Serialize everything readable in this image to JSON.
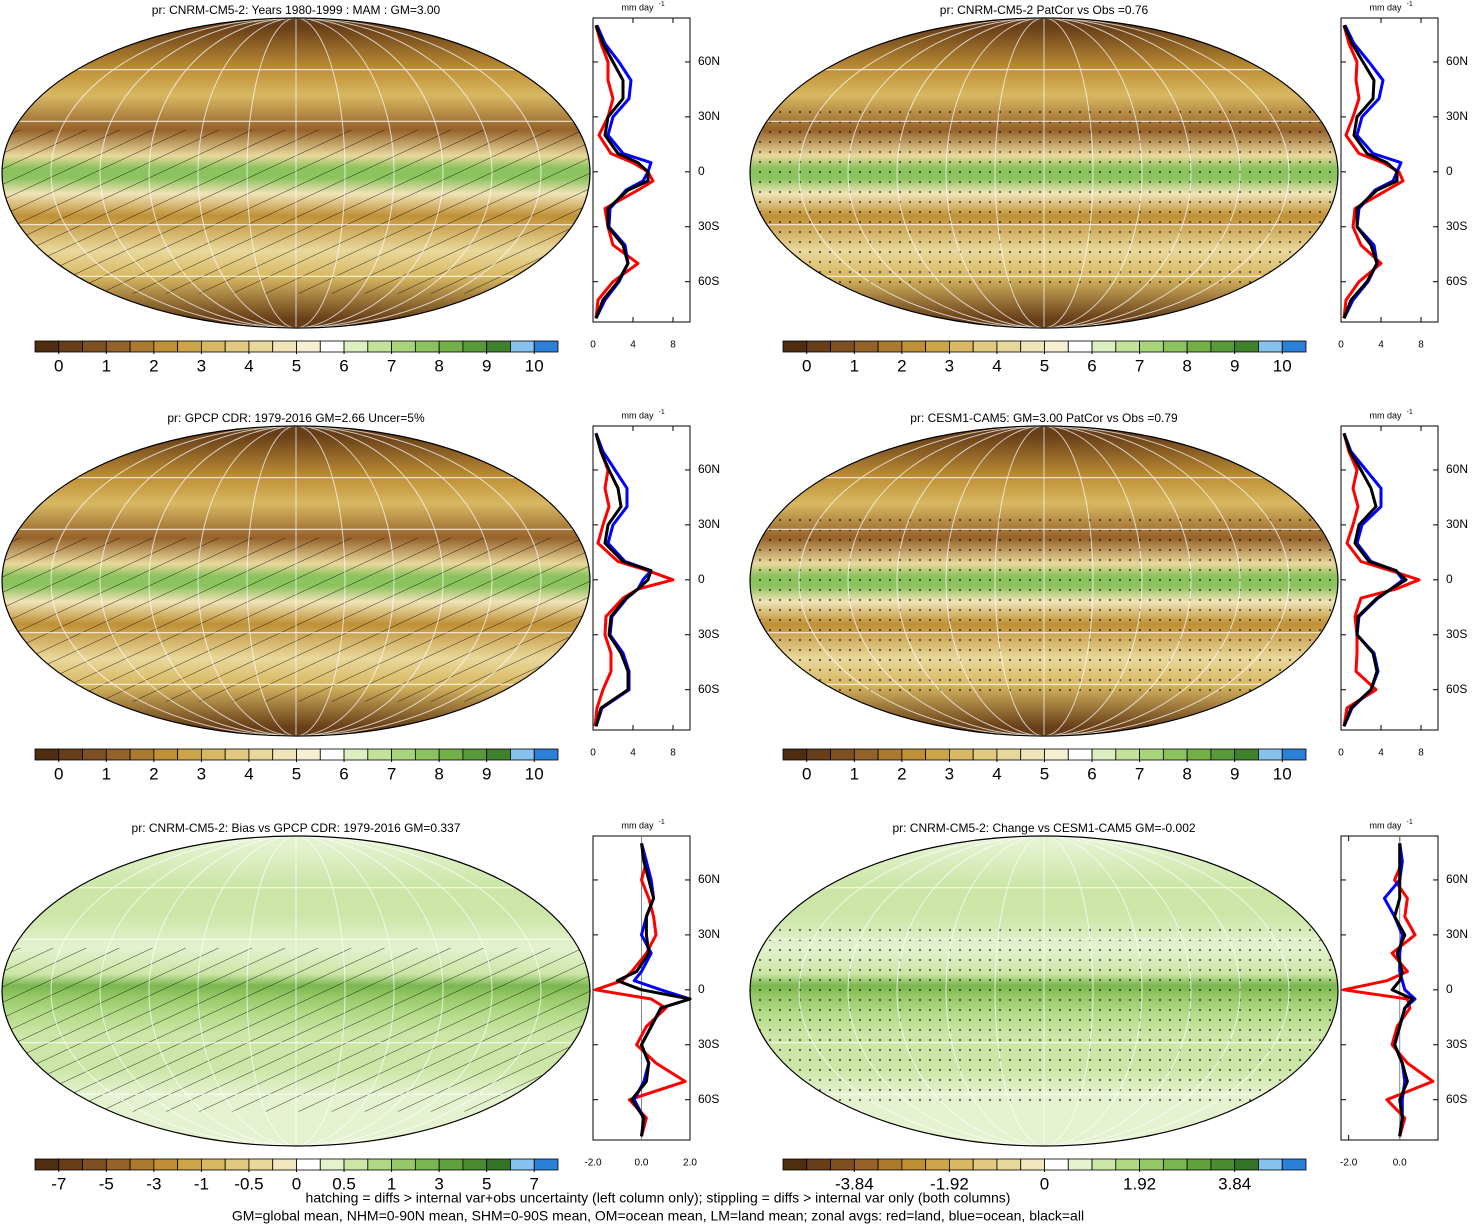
{
  "chart_data": [
    {
      "type": "map",
      "title": "pr: CNRM-CM5-2: Years 1980-1999 : MAM : GM=3.00",
      "hatching": true,
      "stippling": false,
      "colors": [
        "#4e2d10",
        "#673e18",
        "#7e4f21",
        "#95622a",
        "#ab7a2f",
        "#bf9036",
        "#cda548",
        "#d8b862",
        "#e1c97f",
        "#e9d89c",
        "#f0e4b8",
        "#f6efd2",
        "#ffffff",
        "#dcefc0",
        "#c3e399",
        "#a8d47a",
        "#8dc35e",
        "#72b047",
        "#589a38",
        "#3f822c",
        "#86c2ee",
        "#2a7fd6"
      ],
      "colorbar_ticks": [
        0,
        1,
        2,
        3,
        4,
        5,
        6,
        7,
        8,
        9,
        10
      ]
    },
    {
      "type": "line",
      "xlabel": "mm day",
      "xlabel_exponent": "-1",
      "xlim": [
        0,
        9.7
      ],
      "xticks": [
        0,
        4,
        8
      ],
      "ylim": [
        -82,
        84
      ],
      "yticks": [
        {
          "value": 60,
          "label": "60N"
        },
        {
          "value": 30,
          "label": "30N"
        },
        0,
        {
          "value": -30,
          "label": "30S"
        },
        {
          "value": -60,
          "label": "60S"
        }
      ],
      "y": [
        -80,
        -70,
        -60,
        -50,
        -40,
        -30,
        -20,
        -10,
        -5,
        0,
        5,
        10,
        20,
        30,
        40,
        50,
        60,
        70,
        80
      ],
      "series": [
        {
          "color": "#ff0000",
          "values": [
            0.3,
            0.5,
            2.0,
            4.5,
            2.0,
            1.5,
            1.2,
            4.5,
            6.0,
            5.5,
            4.0,
            1.8,
            0.6,
            1.5,
            2.0,
            1.5,
            1.5,
            0.8,
            0.3
          ]
        },
        {
          "color": "#0000ff",
          "values": [
            0.3,
            1.2,
            2.6,
            3.5,
            3.2,
            1.6,
            1.7,
            3.3,
            5.0,
            5.5,
            5.8,
            3.0,
            1.5,
            2.0,
            3.6,
            3.8,
            2.6,
            1.2,
            0.4
          ]
        },
        {
          "color": "#000000",
          "values": [
            0.3,
            1.0,
            2.5,
            3.5,
            3.0,
            1.5,
            1.5,
            3.5,
            5.5,
            5.5,
            4.5,
            2.5,
            1.2,
            1.5,
            3.0,
            3.0,
            2.0,
            1.0,
            0.3
          ]
        }
      ]
    },
    {
      "type": "map",
      "title": "pr: CNRM-CM5-2 PatCor vs Obs =0.76",
      "hatching": false,
      "stippling": true,
      "colors": [
        "#4e2d10",
        "#673e18",
        "#7e4f21",
        "#95622a",
        "#ab7a2f",
        "#bf9036",
        "#cda548",
        "#d8b862",
        "#e1c97f",
        "#e9d89c",
        "#f0e4b8",
        "#f6efd2",
        "#ffffff",
        "#dcefc0",
        "#c3e399",
        "#a8d47a",
        "#8dc35e",
        "#72b047",
        "#589a38",
        "#3f822c",
        "#86c2ee",
        "#2a7fd6"
      ],
      "colorbar_ticks": [
        0,
        1,
        2,
        3,
        4,
        5,
        6,
        7,
        8,
        9,
        10
      ]
    },
    {
      "type": "line",
      "xlabel": "mm day",
      "xlabel_exponent": "-1",
      "xlim": [
        0,
        9.7
      ],
      "xticks": [
        0,
        4,
        8
      ],
      "ylim": [
        -82,
        84
      ],
      "yticks": [
        {
          "value": 60,
          "label": "60N"
        },
        {
          "value": 30,
          "label": "30N"
        },
        0,
        {
          "value": -30,
          "label": "30S"
        },
        {
          "value": -60,
          "label": "60S"
        }
      ],
      "y": [
        -80,
        -70,
        -60,
        -50,
        -40,
        -30,
        -20,
        -10,
        -5,
        0,
        5,
        10,
        20,
        30,
        40,
        50,
        60,
        70,
        80
      ],
      "series": [
        {
          "color": "#ff0000",
          "values": [
            0.3,
            0.5,
            1.8,
            4.0,
            2.0,
            1.2,
            1.4,
            4.6,
            6.2,
            5.8,
            4.2,
            1.8,
            0.5,
            1.2,
            1.8,
            1.5,
            1.6,
            0.8,
            0.3
          ]
        },
        {
          "color": "#0000ff",
          "values": [
            0.3,
            1.2,
            2.7,
            3.6,
            3.3,
            1.6,
            1.8,
            3.4,
            5.2,
            5.6,
            6.0,
            3.2,
            1.6,
            2.1,
            3.8,
            4.2,
            2.8,
            1.3,
            0.4
          ]
        },
        {
          "color": "#000000",
          "values": [
            0.3,
            1.0,
            2.6,
            3.6,
            3.0,
            1.6,
            1.6,
            3.6,
            5.6,
            5.6,
            4.6,
            2.6,
            1.3,
            1.6,
            3.2,
            3.3,
            2.2,
            1.1,
            0.3
          ]
        }
      ]
    },
    {
      "type": "map",
      "title": "pr: GPCP CDR: 1979-2016 GM=2.66 Uncer=5%",
      "hatching": true,
      "stippling": false,
      "colors": [
        "#4e2d10",
        "#673e18",
        "#7e4f21",
        "#95622a",
        "#ab7a2f",
        "#bf9036",
        "#cda548",
        "#d8b862",
        "#e1c97f",
        "#e9d89c",
        "#f0e4b8",
        "#f6efd2",
        "#ffffff",
        "#dcefc0",
        "#c3e399",
        "#a8d47a",
        "#8dc35e",
        "#72b047",
        "#589a38",
        "#3f822c",
        "#86c2ee",
        "#2a7fd6"
      ],
      "colorbar_ticks": [
        0,
        1,
        2,
        3,
        4,
        5,
        6,
        7,
        8,
        9,
        10
      ]
    },
    {
      "type": "line",
      "xlabel": "mm day",
      "xlabel_exponent": "-1",
      "xlim": [
        0,
        9.7
      ],
      "xticks": [
        0,
        4,
        8
      ],
      "ylim": [
        -82,
        84
      ],
      "yticks": [
        {
          "value": 60,
          "label": "60N"
        },
        {
          "value": 30,
          "label": "30N"
        },
        0,
        {
          "value": -30,
          "label": "30S"
        },
        {
          "value": -60,
          "label": "60S"
        }
      ],
      "y": [
        -80,
        -70,
        -60,
        -50,
        -40,
        -30,
        -20,
        -10,
        -5,
        0,
        5,
        10,
        20,
        30,
        40,
        50,
        60,
        70,
        80
      ],
      "series": [
        {
          "color": "#ff0000",
          "values": [
            0.2,
            0.4,
            1.0,
            1.8,
            1.8,
            1.2,
            1.3,
            3.0,
            4.5,
            8.0,
            5.5,
            2.5,
            0.5,
            1.0,
            1.6,
            1.2,
            1.5,
            0.8,
            0.3
          ]
        },
        {
          "color": "#0000ff",
          "values": [
            0.3,
            0.9,
            3.6,
            3.6,
            3.0,
            1.7,
            1.9,
            3.4,
            4.5,
            5.0,
            5.8,
            3.2,
            1.5,
            2.0,
            3.4,
            3.4,
            2.2,
            1.0,
            0.3
          ]
        },
        {
          "color": "#000000",
          "values": [
            0.3,
            0.8,
            3.5,
            3.5,
            2.8,
            1.6,
            1.8,
            3.3,
            4.5,
            5.5,
            5.8,
            3.0,
            1.2,
            1.5,
            2.8,
            2.5,
            1.6,
            0.8,
            0.3
          ]
        }
      ]
    },
    {
      "type": "map",
      "title": "pr: CESM1-CAM5: GM=3.00 PatCor vs Obs =0.79",
      "hatching": false,
      "stippling": true,
      "colors": [
        "#4e2d10",
        "#673e18",
        "#7e4f21",
        "#95622a",
        "#ab7a2f",
        "#bf9036",
        "#cda548",
        "#d8b862",
        "#e1c97f",
        "#e9d89c",
        "#f0e4b8",
        "#f6efd2",
        "#ffffff",
        "#dcefc0",
        "#c3e399",
        "#a8d47a",
        "#8dc35e",
        "#72b047",
        "#589a38",
        "#3f822c",
        "#86c2ee",
        "#2a7fd6"
      ],
      "colorbar_ticks": [
        0,
        1,
        2,
        3,
        4,
        5,
        6,
        7,
        8,
        9,
        10
      ]
    },
    {
      "type": "line",
      "xlabel": "mm day",
      "xlabel_exponent": "-1",
      "xlim": [
        0,
        9.7
      ],
      "xticks": [
        0,
        4,
        8
      ],
      "ylim": [
        -82,
        84
      ],
      "yticks": [
        {
          "value": 60,
          "label": "60N"
        },
        {
          "value": 30,
          "label": "30N"
        },
        0,
        {
          "value": -30,
          "label": "30S"
        },
        {
          "value": -60,
          "label": "60S"
        }
      ],
      "y": [
        -80,
        -70,
        -60,
        -50,
        -40,
        -30,
        -20,
        -10,
        -5,
        0,
        5,
        10,
        20,
        30,
        40,
        50,
        60,
        70,
        80
      ],
      "series": [
        {
          "color": "#ff0000",
          "values": [
            0.3,
            0.6,
            3.5,
            1.5,
            1.6,
            1.6,
            1.4,
            2.0,
            5.5,
            7.8,
            5.0,
            2.0,
            0.6,
            1.2,
            1.7,
            1.2,
            1.6,
            0.8,
            0.3
          ]
        },
        {
          "color": "#0000ff",
          "values": [
            0.3,
            1.1,
            3.0,
            3.7,
            3.3,
            1.6,
            1.8,
            3.7,
            5.0,
            6.2,
            5.5,
            3.0,
            1.6,
            2.1,
            4.0,
            4.0,
            2.5,
            1.0,
            0.3
          ]
        },
        {
          "color": "#000000",
          "values": [
            0.3,
            1.0,
            3.0,
            3.6,
            3.2,
            1.6,
            1.7,
            3.6,
            5.0,
            6.5,
            5.5,
            2.8,
            1.4,
            1.8,
            3.5,
            3.0,
            2.0,
            0.9,
            0.3
          ]
        }
      ]
    },
    {
      "type": "map",
      "title": "pr: CNRM-CM5-2: Bias vs GPCP CDR: 1979-2016 GM=0.337",
      "hatching": true,
      "stippling": false,
      "colors": [
        "#4e2d10",
        "#673e18",
        "#7e4f21",
        "#95622a",
        "#ab7a2f",
        "#bf9036",
        "#cda548",
        "#d8b862",
        "#e1c97f",
        "#e9d89c",
        "#f2e6bf",
        "#ffffff",
        "#e4f2cf",
        "#cbe6a6",
        "#b0d985",
        "#95c866",
        "#7ab64f",
        "#61a13d",
        "#4a8a30",
        "#347226",
        "#86c2ee",
        "#2a7fd6"
      ],
      "colorbar_ticks": [
        -7,
        -5,
        -3,
        -1,
        -0.5,
        0,
        0.5,
        1,
        3,
        5,
        7
      ]
    },
    {
      "type": "line",
      "xlabel": "mm day",
      "xlabel_exponent": "-1",
      "xlim": [
        -2,
        2
      ],
      "xticks": [
        {
          "value": -2,
          "label": "-2.0"
        },
        {
          "value": 0,
          "label": "0.0"
        },
        {
          "value": 2,
          "label": "2.0"
        }
      ],
      "ylim": [
        -82,
        84
      ],
      "yticks": [
        {
          "value": 60,
          "label": "60N"
        },
        {
          "value": 30,
          "label": "30N"
        },
        0,
        {
          "value": -30,
          "label": "30S"
        },
        {
          "value": -60,
          "label": "60S"
        }
      ],
      "y": [
        -80,
        -70,
        -60,
        -50,
        -40,
        -30,
        -20,
        -10,
        -5,
        0,
        5,
        10,
        20,
        30,
        40,
        50,
        60,
        70,
        80
      ],
      "series": [
        {
          "color": "#ff0000",
          "values": [
            0.0,
            0.2,
            -0.5,
            1.8,
            0.6,
            -0.2,
            0.2,
            1.0,
            0.4,
            -1.9,
            -0.8,
            -0.4,
            0.2,
            0.6,
            0.5,
            0.3,
            0.0,
            0.2,
            0.0
          ]
        },
        {
          "color": "#0000ff",
          "values": [
            0.0,
            0.1,
            -0.3,
            0.1,
            0.3,
            0.0,
            0.4,
            0.8,
            2.0,
            0.8,
            -0.3,
            0.0,
            0.4,
            0.0,
            0.2,
            0.5,
            0.4,
            0.2,
            0.0
          ]
        },
        {
          "color": "#000000",
          "values": [
            0.0,
            0.1,
            -0.4,
            0.2,
            0.3,
            0.0,
            0.4,
            0.8,
            2.0,
            0.0,
            -1.0,
            -0.2,
            0.3,
            0.2,
            0.2,
            0.5,
            0.3,
            0.1,
            0.0
          ]
        }
      ]
    },
    {
      "type": "map",
      "title": "pr: CNRM-CM5-2: Change vs CESM1-CAM5 GM=-0.002",
      "hatching": false,
      "stippling": true,
      "colors": [
        "#4e2d10",
        "#673e18",
        "#7e4f21",
        "#95622a",
        "#ab7a2f",
        "#bf9036",
        "#cda548",
        "#d8b862",
        "#e1c97f",
        "#e9d89c",
        "#f2e6bf",
        "#ffffff",
        "#e4f2cf",
        "#cbe6a6",
        "#b0d985",
        "#95c866",
        "#7ab64f",
        "#61a13d",
        "#4a8a30",
        "#347226",
        "#86c2ee",
        "#2a7fd6"
      ],
      "colorbar_ticks": [
        -3.84,
        -1.92,
        0,
        1.92,
        3.84
      ]
    },
    {
      "type": "line",
      "xlabel": "mm day",
      "xlabel_exponent": "-1",
      "xlim": [
        -2.3,
        1.5
      ],
      "xticks": [
        {
          "value": -2,
          "label": "-2.0"
        },
        {
          "value": 0,
          "label": "0.0"
        }
      ],
      "ylim": [
        -82,
        84
      ],
      "yticks": [
        {
          "value": 60,
          "label": "60N"
        },
        {
          "value": 30,
          "label": "30N"
        },
        0,
        {
          "value": -30,
          "label": "30S"
        },
        {
          "value": -60,
          "label": "60S"
        }
      ],
      "y": [
        -80,
        -70,
        -60,
        -50,
        -40,
        -30,
        -20,
        -10,
        -5,
        0,
        5,
        10,
        20,
        30,
        40,
        50,
        60,
        70,
        80
      ],
      "series": [
        {
          "color": "#ff0000",
          "values": [
            0.0,
            0.2,
            -0.5,
            1.3,
            0.3,
            -0.3,
            -0.1,
            0.4,
            0.3,
            -2.2,
            -0.5,
            0.3,
            -0.3,
            0.6,
            0.2,
            0.3,
            -0.2,
            0.1,
            0.0
          ]
        },
        {
          "color": "#0000ff",
          "values": [
            0.0,
            0.1,
            0.1,
            0.2,
            0.1,
            -0.2,
            0.0,
            0.2,
            0.6,
            0.2,
            0.1,
            0.0,
            0.0,
            0.1,
            -0.2,
            -0.6,
            0.0,
            0.1,
            0.0
          ]
        },
        {
          "color": "#000000",
          "values": [
            0.0,
            0.1,
            0.0,
            0.3,
            0.1,
            -0.2,
            0.0,
            0.2,
            0.5,
            -0.3,
            0.0,
            0.1,
            -0.1,
            0.2,
            -0.2,
            0.0,
            0.0,
            0.0,
            0.0
          ]
        }
      ]
    }
  ],
  "footer": [
    "hatching = diffs > internal var+obs uncertainty (left column only); stippling = diffs > internal var only (both columns)",
    "GM=global mean, NHM=0-90N mean, SHM=0-90S mean, OM=ocean mean, LM=land mean; zonal avgs: red=land, blue=ocean, black=all"
  ]
}
